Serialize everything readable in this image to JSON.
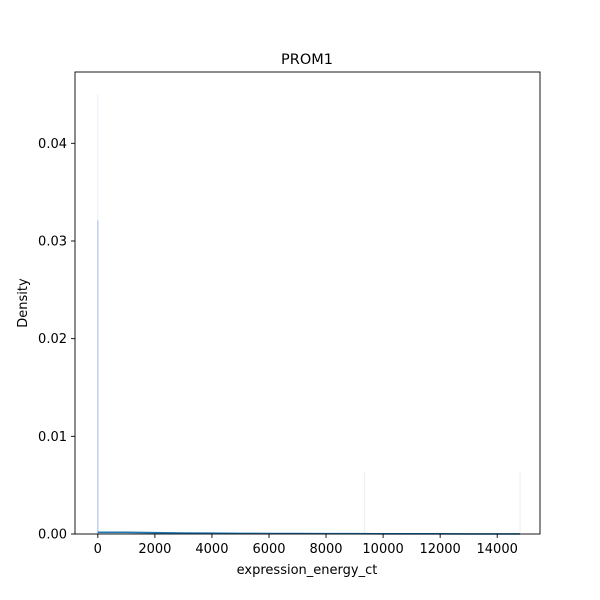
{
  "chart_data": {
    "type": "area",
    "title": "PROM1",
    "xlabel": "expression_energy_ct",
    "ylabel": "Density",
    "xlim": [
      -800,
      15500
    ],
    "ylim": [
      0,
      0.0473
    ],
    "xticks": [
      0,
      2000,
      4000,
      6000,
      8000,
      10000,
      12000,
      14000
    ],
    "yticks": [
      0.0,
      0.01,
      0.02,
      0.03,
      0.04
    ],
    "xtick_labels": [
      "0",
      "2000",
      "4000",
      "6000",
      "8000",
      "10000",
      "12000",
      "14000"
    ],
    "ytick_labels": [
      "0.00",
      "0.01",
      "0.02",
      "0.03",
      "0.04"
    ],
    "grid": false,
    "histogram": {
      "x": [
        0,
        9350,
        14800
      ],
      "heights": [
        0.045,
        0.0064,
        0.0064
      ],
      "spike": {
        "x": 0,
        "value": 0.0321
      }
    },
    "series": [
      {
        "x": [
          0,
          1000,
          2000,
          3000,
          4000,
          5000,
          6000,
          7000,
          8000,
          9000,
          10000,
          11000,
          12000,
          13000,
          14000,
          14800
        ],
        "values": [
          0.00018,
          0.00018,
          0.00013,
          0.0001,
          8e-05,
          6e-05,
          5e-05,
          4e-05,
          3e-05,
          3e-05,
          2e-05,
          2e-05,
          2e-05,
          1e-05,
          1e-05,
          1e-05
        ]
      }
    ],
    "colors": {
      "kde_line": "#1f77b4",
      "kde_fill": "#1f77b4",
      "spike": "#aec7e8",
      "hist_bar": "#e8eef7"
    }
  }
}
